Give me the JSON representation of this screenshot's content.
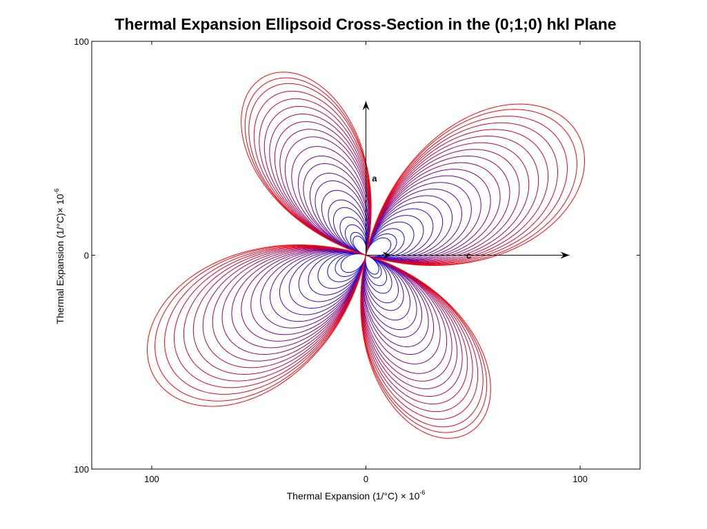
{
  "chart_data": {
    "type": "line",
    "title": "Thermal Expansion Ellipsoid Cross-Section in the (0;1;0) hkl Plane",
    "xlabel": {
      "text": "Thermal Expansion (1/°C) × 10",
      "exponent": "-6"
    },
    "ylabel": {
      "text": "Thermal Expansion (1/°C)× 10",
      "exponent": "-6"
    },
    "xlim": [
      -128,
      128
    ],
    "ylim": [
      -100,
      100
    ],
    "x_ticks": [
      {
        "value": -100,
        "label": "100"
      },
      {
        "value": 0,
        "label": "0"
      },
      {
        "value": 100,
        "label": "100"
      }
    ],
    "y_ticks": [
      {
        "value": 100,
        "label": "100"
      },
      {
        "value": 0,
        "label": "0"
      },
      {
        "value": -100,
        "label": "100"
      }
    ],
    "grid": false,
    "color_start": "#0000ff",
    "color_end": "#ff0000",
    "curve_model": "r(theta) = A*cos^2(theta - phi) - B*sin^2(theta - phi)",
    "phi_deg": 30,
    "series": [
      {
        "A": 13,
        "B": 10
      },
      {
        "A": 16,
        "B": 12
      },
      {
        "A": 20,
        "B": 16
      },
      {
        "A": 25,
        "B": 20
      },
      {
        "A": 30,
        "B": 25
      },
      {
        "A": 35,
        "B": 29
      },
      {
        "A": 40,
        "B": 34
      },
      {
        "A": 45,
        "B": 39
      },
      {
        "A": 50,
        "B": 43
      },
      {
        "A": 55,
        "B": 48
      },
      {
        "A": 60,
        "B": 52
      },
      {
        "A": 65,
        "B": 57
      },
      {
        "A": 70,
        "B": 62
      },
      {
        "A": 75,
        "B": 66
      },
      {
        "A": 80,
        "B": 70
      },
      {
        "A": 85,
        "B": 74
      },
      {
        "A": 90,
        "B": 78
      },
      {
        "A": 95,
        "B": 82
      },
      {
        "A": 100,
        "B": 86
      },
      {
        "A": 105,
        "B": 90
      },
      {
        "A": 110,
        "B": 93
      },
      {
        "A": 114,
        "B": 96
      }
    ],
    "arrows": [
      {
        "label": "a",
        "from": [
          0,
          0
        ],
        "to": [
          0,
          72
        ],
        "label_at": [
          4,
          36
        ]
      },
      {
        "label": "c",
        "from": [
          0,
          0
        ],
        "to": [
          95,
          0
        ],
        "label_at": [
          48,
          0
        ]
      },
      {
        "label": "",
        "from": [
          0,
          0
        ],
        "to": [
          12,
          0
        ],
        "label_at": [
          12,
          0
        ]
      }
    ]
  }
}
